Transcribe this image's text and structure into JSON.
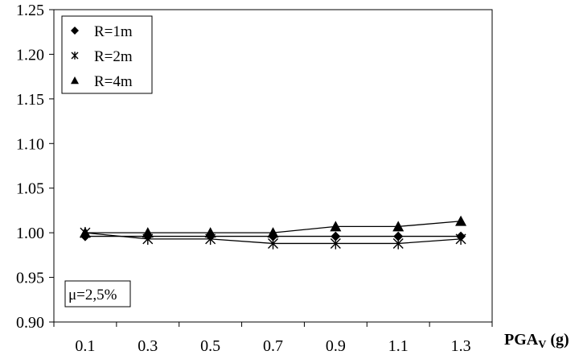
{
  "chart_data": {
    "type": "line",
    "x": [
      0.1,
      0.3,
      0.5,
      0.7,
      0.9,
      1.1,
      1.3
    ],
    "x_tick_labels": [
      "0.1",
      "0.3",
      "0.5",
      "0.7",
      "0.9",
      "1.1",
      "1.3"
    ],
    "y_tick_labels": [
      "0.90",
      "0.95",
      "1.00",
      "1.05",
      "1.10",
      "1.15",
      "1.20",
      "1.25"
    ],
    "ylim": [
      0.9,
      1.25
    ],
    "xlabel": {
      "main": "PGA",
      "subscript": "V",
      "unit": " (g)"
    },
    "ylabel": "",
    "title": "",
    "annotation": "μ=2,5%",
    "grid": false,
    "legend_position": "top-left",
    "series": [
      {
        "name": "R=1m",
        "marker": "diamond",
        "values": [
          0.996,
          0.996,
          0.996,
          0.996,
          0.996,
          0.996,
          0.996
        ]
      },
      {
        "name": "R=2m",
        "marker": "star",
        "values": [
          1.0,
          0.993,
          0.993,
          0.988,
          0.988,
          0.988,
          0.993
        ]
      },
      {
        "name": "R=4m",
        "marker": "triangle",
        "values": [
          1.0,
          1.0,
          1.0,
          1.0,
          1.007,
          1.007,
          1.013
        ]
      }
    ]
  }
}
